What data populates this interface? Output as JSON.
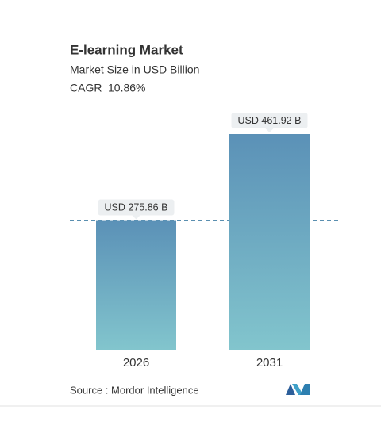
{
  "chart_data": {
    "type": "bar",
    "title": "E-learning Market",
    "subtitle": "Market Size in USD Billion",
    "cagr_label": "CAGR",
    "cagr": "10.86%",
    "categories": [
      "2026",
      "2031"
    ],
    "values": [
      275.86,
      461.92
    ],
    "value_labels": [
      "USD 275.86 B",
      "USD 461.92 B"
    ],
    "gradient": [
      "#5b91b7",
      "#82c5cd"
    ],
    "reference_line": true,
    "source": "Source :  Mordor Intelligence"
  }
}
